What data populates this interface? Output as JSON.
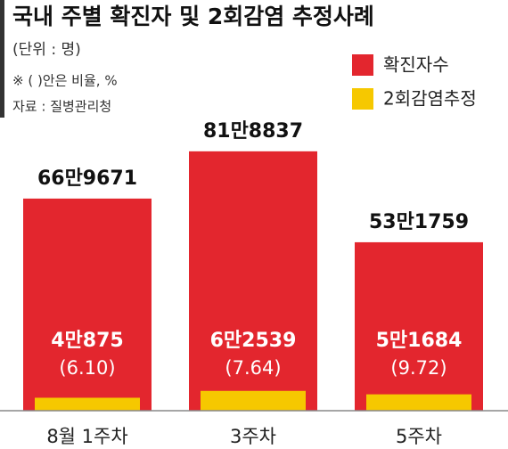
{
  "chart_data": {
    "type": "overlap-bar",
    "title": "국내 주별 확진자 및 2회감염 추정사례",
    "notes": [
      "(단위 : 명)",
      "※ (  )안은 비율, %",
      "자료 : 질병관리청"
    ],
    "categories": [
      "8월 1주차",
      "3주차",
      "5주차"
    ],
    "series": [
      {
        "name": "확진자수",
        "color": "#e3262e",
        "values": [
          669671,
          818837,
          531759
        ],
        "value_labels": [
          "66만9671",
          "81만8837",
          "53만1759"
        ]
      },
      {
        "name": "2회감염추정",
        "color": "#f6c800",
        "values": [
          40875,
          62539,
          51684
        ],
        "value_labels": [
          "4만875",
          "6만2539",
          "5만1684"
        ],
        "ratios": [
          6.1,
          7.64,
          9.72
        ],
        "ratio_labels": [
          "(6.10)",
          "(7.64)",
          "(9.72)"
        ]
      }
    ],
    "ylim": [
      0,
      900000
    ],
    "legend": "top-right"
  }
}
